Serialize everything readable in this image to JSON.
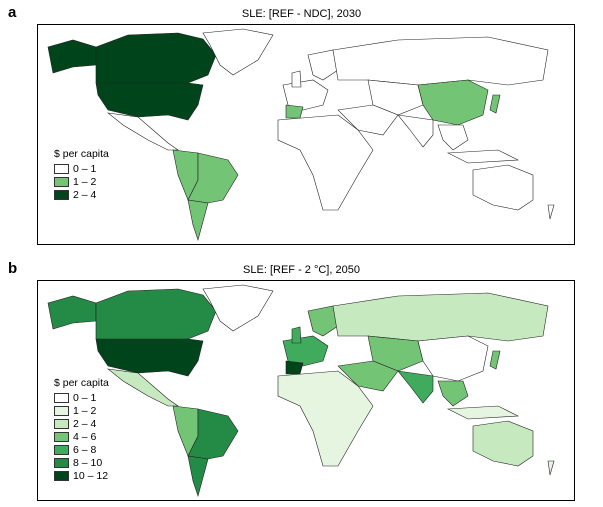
{
  "panels": [
    {
      "letter": "a",
      "title": "SLE: [REF - NDC], 2030",
      "legend_title": "$ per capita",
      "legend": [
        {
          "label": "0 – 1",
          "color": "#ffffff"
        },
        {
          "label": "1 – 2",
          "color": "#74c476"
        },
        {
          "label": "2 – 4",
          "color": "#00441b"
        }
      ],
      "region_bins": {
        "alaska": 2,
        "canada": 2,
        "usa": 2,
        "greenland": 0,
        "mexico": 0,
        "brazil": 1,
        "argentina": 1,
        "andes": 1,
        "europe": 0,
        "iberia": 1,
        "scandinavia": 0,
        "uk": 0,
        "russia": 0,
        "mideast": 0,
        "africa": 0,
        "centralasia": 0,
        "china": 1,
        "india": 0,
        "seasia": 0,
        "indonesia": 0,
        "japan": 1,
        "australia": 0,
        "nz": 0
      }
    },
    {
      "letter": "b",
      "title": "SLE: [REF - 2 °C], 2050",
      "legend_title": "$ per capita",
      "legend": [
        {
          "label": "0 – 1",
          "color": "#ffffff"
        },
        {
          "label": "1 – 2",
          "color": "#e5f5e0"
        },
        {
          "label": "2 – 4",
          "color": "#c7e9c0"
        },
        {
          "label": "4 – 6",
          "color": "#74c476"
        },
        {
          "label": "6 – 8",
          "color": "#41ab5d"
        },
        {
          "label": "8 – 10",
          "color": "#238b45"
        },
        {
          "label": "10 – 12",
          "color": "#00441b"
        }
      ],
      "region_bins": {
        "alaska": 5,
        "canada": 5,
        "usa": 6,
        "greenland": 0,
        "mexico": 2,
        "brazil": 5,
        "argentina": 5,
        "andes": 3,
        "europe": 4,
        "iberia": 6,
        "scandinavia": 3,
        "uk": 4,
        "russia": 2,
        "mideast": 3,
        "africa": 1,
        "centralasia": 3,
        "china": 0,
        "india": 4,
        "seasia": 3,
        "indonesia": 1,
        "japan": 3,
        "australia": 2,
        "nz": 1
      }
    }
  ]
}
